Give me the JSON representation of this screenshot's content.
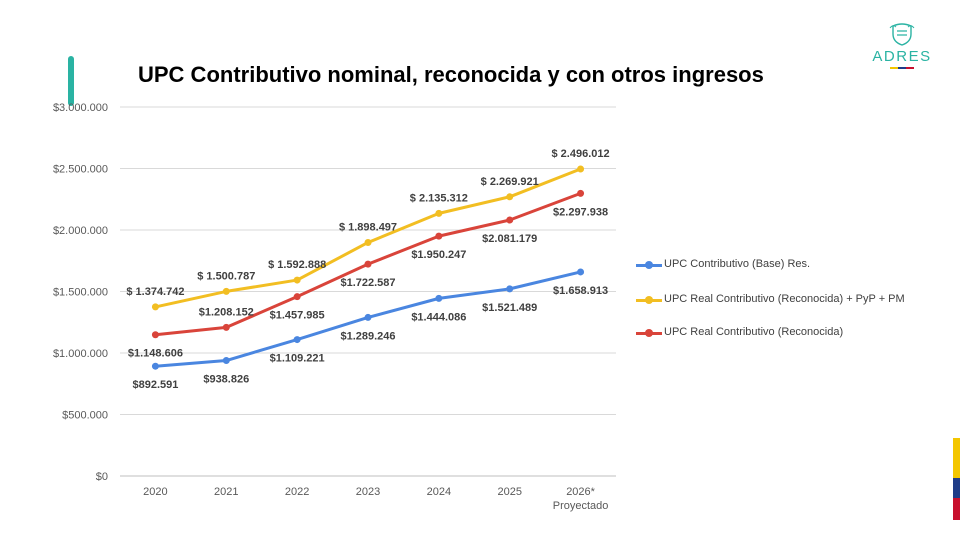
{
  "slide": {
    "title": "UPC Contributivo nominal, reconocida y con otros ingresos",
    "logo_text": "ADRES",
    "colors": {
      "accent": "#2ab3a3",
      "flag_yellow": "#f3c600",
      "flag_blue": "#1f3c88",
      "flag_red": "#c8102e"
    }
  },
  "chart_data": {
    "type": "line",
    "title": "UPC Contributivo nominal, reconocida y con otros ingresos",
    "categories": [
      "2020",
      "2021",
      "2022",
      "2023",
      "2024",
      "2025",
      "2026*\nProyectado"
    ],
    "ylim": [
      0,
      3000000
    ],
    "ytick_values": [
      0,
      500000,
      1000000,
      1500000,
      2000000,
      2500000,
      3000000
    ],
    "ytick_labels": [
      "$0",
      "$500.000",
      "$1.000.000",
      "$1.500.000",
      "$2.000.000",
      "$2.500.000",
      "$3.000.000"
    ],
    "grid": true,
    "legend_position": "right",
    "series": [
      {
        "name": "UPC Contributivo (Base) Res.",
        "color": "#4a86e0",
        "values": [
          892591,
          938826,
          1109221,
          1289246,
          1444086,
          1521489,
          1658913
        ],
        "labels": [
          "$892.591",
          "$938.826",
          "$1.109.221",
          "$1.289.246",
          "$1.444.086",
          "$1.521.489",
          "$1.658.913"
        ],
        "label_pos": [
          "below",
          "below",
          "below",
          "below",
          "below",
          "below",
          "below"
        ]
      },
      {
        "name": "UPC Real Contributivo (Reconocida) + PyP + PM",
        "color": "#f2be22",
        "values": [
          1374742,
          1500787,
          1592888,
          1898497,
          2135312,
          2269921,
          2496012
        ],
        "labels": [
          "$ 1.374.742",
          "$ 1.500.787",
          "$ 1.592.888",
          "$ 1.898.497",
          "$ 2.135.312",
          "$ 2.269.921",
          "$ 2.496.012"
        ],
        "label_pos": [
          "above",
          "above",
          "above",
          "above",
          "above",
          "above",
          "above"
        ]
      },
      {
        "name": "UPC Real Contributivo (Reconocida)",
        "color": "#d9443a",
        "values": [
          1148606,
          1208152,
          1457985,
          1722587,
          1950247,
          2081179,
          2297938
        ],
        "labels": [
          "$1.148.606",
          "$1.208.152",
          "$1.457.985",
          "$1.722.587",
          "$1.950.247",
          "$2.081.179",
          "$2.297.938"
        ],
        "label_pos": [
          "below",
          "above",
          "below",
          "below",
          "below",
          "below",
          "below"
        ]
      }
    ]
  }
}
